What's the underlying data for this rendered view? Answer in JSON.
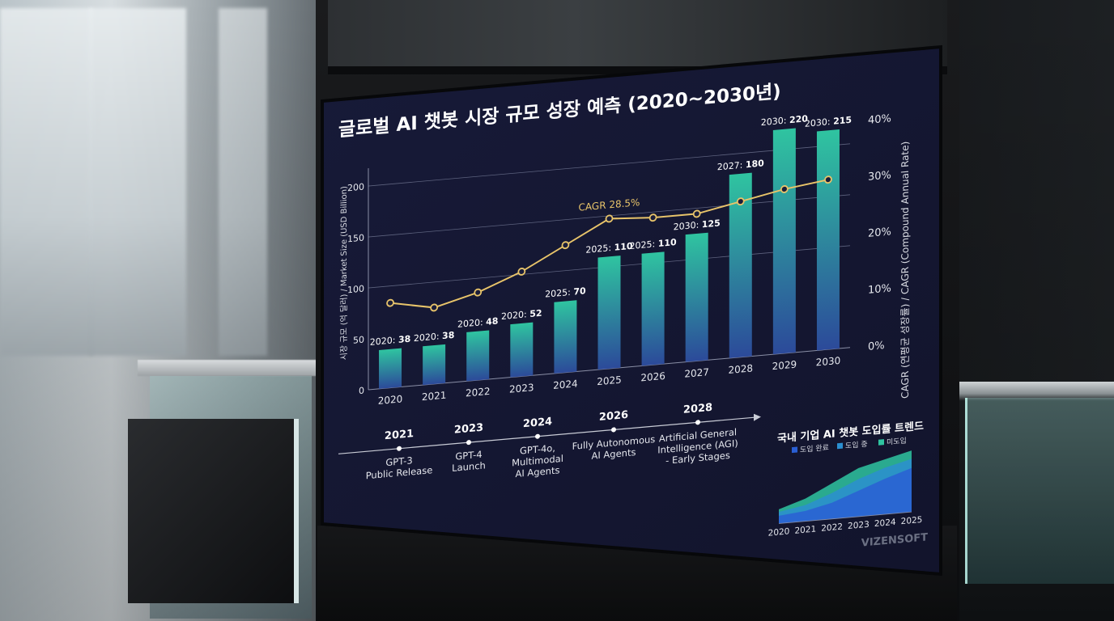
{
  "brand": "VIZENSOFT",
  "chart_data": [
    {
      "type": "bar",
      "title": "글로벌 AI 챗봇 시장 규모 성장 예측 (2020~2030년)",
      "ylabel": "시장 규모 (억 달러) / Market Size (USD Billion)",
      "y2label": "CAGR (연평균 성장률) / CAGR (Compound Annual Rate)",
      "categories": [
        "2020",
        "2021",
        "2022",
        "2023",
        "2024",
        "2025",
        "2026",
        "2027",
        "2028",
        "2029",
        "2030"
      ],
      "ylim": [
        0,
        200
      ],
      "yticks": [
        "0",
        "50",
        "100",
        "150",
        "200"
      ],
      "y2lim": [
        0,
        40
      ],
      "y2ticks": [
        "0%",
        "10%",
        "20%",
        "30%",
        "40%"
      ],
      "grid": true,
      "series": [
        {
          "type": "bar",
          "values": [
            38,
            38,
            48,
            52,
            70,
            110,
            110,
            125,
            180,
            220,
            215
          ],
          "data_labels": [
            {
              "prefix": "2020: ",
              "value": "38"
            },
            {
              "prefix": "2020: ",
              "value": "38"
            },
            {
              "prefix": "2020: ",
              "value": "48"
            },
            {
              "prefix": "2020: ",
              "value": "52"
            },
            {
              "prefix": "2025: ",
              "value": "70"
            },
            {
              "prefix": "2025: ",
              "value": "110"
            },
            {
              "prefix": "2025: ",
              "value": "110"
            },
            {
              "prefix": "2030: ",
              "value": "125"
            },
            {
              "prefix": "2027: ",
              "value": "180"
            },
            {
              "prefix": "2030: ",
              "value": "220"
            },
            {
              "prefix": "2030: ",
              "value": "215"
            }
          ]
        },
        {
          "type": "line",
          "axis": "y2",
          "values": [
            15,
            13.5,
            15.5,
            18.5,
            22.5,
            26.5,
            26,
            26,
            27.5,
            29,
            30
          ]
        }
      ],
      "annotation": "CAGR 28.5%",
      "colors": {
        "bar_top": "#2fc4a0",
        "bar_bottom": "#2c4a9a",
        "line": "#e8c46a",
        "axis_text": "#e6e8ee"
      }
    },
    {
      "type": "area",
      "title": "국내 기업 AI 챗봇 도입률 트렌드",
      "categories": [
        "2020",
        "2021",
        "2022",
        "2023",
        "2024",
        "2025"
      ],
      "legend": [
        "도입 완료",
        "도입 중",
        "미도입"
      ],
      "legend_position": "top",
      "series": [
        {
          "name": "미도입",
          "values": [
            0.22,
            0.35,
            0.55,
            0.75,
            0.85,
            0.95
          ]
        },
        {
          "name": "도입 중",
          "values": [
            0.18,
            0.25,
            0.4,
            0.58,
            0.72,
            0.82
          ]
        },
        {
          "name": "도입 완료",
          "values": [
            0.12,
            0.16,
            0.25,
            0.4,
            0.55,
            0.68
          ]
        }
      ],
      "colors": {
        "도입 완료": "#2a5fd4",
        "도입 중": "#2b8fd0",
        "미도입": "#2fc4a0"
      }
    }
  ],
  "timeline": [
    {
      "year": "2021",
      "lines": [
        "GPT-3",
        "Public Release"
      ]
    },
    {
      "year": "2023",
      "lines": [
        "GPT-4",
        "Launch"
      ]
    },
    {
      "year": "2024",
      "lines": [
        "GPT-4o,",
        "Multimodal",
        "AI Agents"
      ]
    },
    {
      "year": "2026",
      "lines": [
        "Fully Autonomous",
        "AI Agents"
      ]
    },
    {
      "year": "2028",
      "lines": [
        "Artificial General",
        "Intelligence (AGI)",
        "- Early Stages"
      ]
    }
  ]
}
